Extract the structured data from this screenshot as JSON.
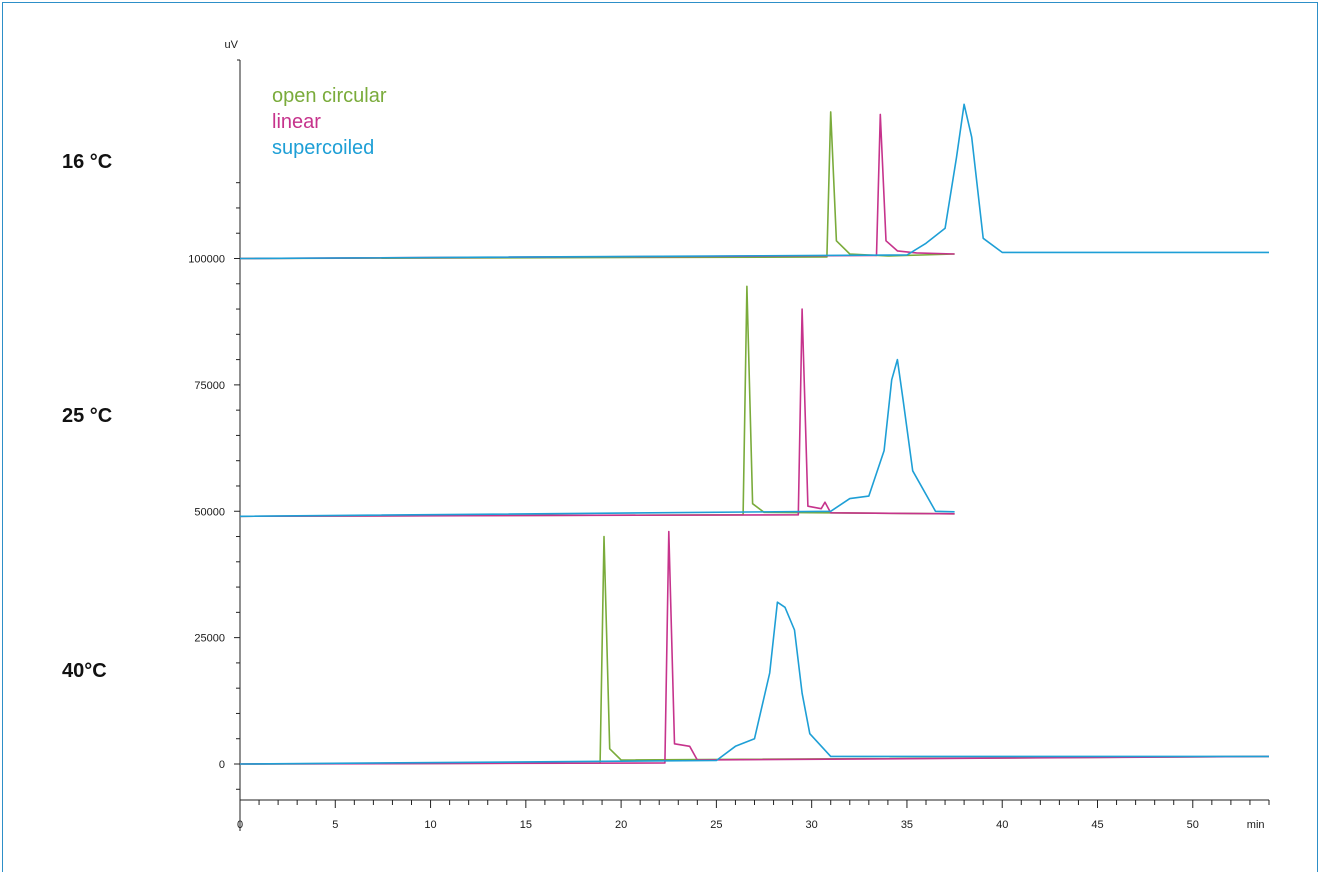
{
  "chart_data": {
    "type": "line",
    "title": "",
    "ylabel": "uV",
    "xlabel": "min",
    "xlim": [
      0,
      54
    ],
    "ylim": [
      -7500,
      118000
    ],
    "x_ticks": [
      0,
      5,
      10,
      15,
      20,
      25,
      30,
      35,
      40,
      45,
      50
    ],
    "y_ticks": [
      0,
      25000,
      50000,
      75000,
      100000
    ],
    "colors": {
      "open circular": "#7aab3b",
      "linear": "#c6338c",
      "supercoiled": "#1e9fd6"
    },
    "legend": {
      "placement": "top-left",
      "entries": [
        "open circular",
        "linear",
        "supercoiled"
      ]
    },
    "panels": [
      {
        "label": "16 °C",
        "baseline": 100000,
        "series": [
          {
            "name": "open circular",
            "points": [
              [
                0,
                100000
              ],
              [
                30.8,
                100300
              ],
              [
                31.0,
                129000
              ],
              [
                31.3,
                103500
              ],
              [
                32,
                100900
              ],
              [
                34,
                100500
              ],
              [
                37.5,
                100900
              ]
            ]
          },
          {
            "name": "linear",
            "points": [
              [
                0,
                100000
              ],
              [
                33.4,
                100600
              ],
              [
                33.6,
                128500
              ],
              [
                33.9,
                103500
              ],
              [
                34.5,
                101500
              ],
              [
                35.5,
                101100
              ],
              [
                37.5,
                100900
              ]
            ]
          },
          {
            "name": "supercoiled",
            "points": [
              [
                0,
                100000
              ],
              [
                35,
                100700
              ],
              [
                36,
                103000
              ],
              [
                37,
                106000
              ],
              [
                37.6,
                120000
              ],
              [
                38.0,
                130500
              ],
              [
                38.4,
                124000
              ],
              [
                39.0,
                104000
              ],
              [
                40,
                101200
              ],
              [
                54,
                101200
              ]
            ]
          }
        ]
      },
      {
        "label": "25 °C",
        "baseline": 49000,
        "series": [
          {
            "name": "open circular",
            "points": [
              [
                0,
                49000
              ],
              [
                26.4,
                49300
              ],
              [
                26.6,
                94500
              ],
              [
                26.9,
                51500
              ],
              [
                27.5,
                49800
              ],
              [
                37.5,
                49500
              ]
            ]
          },
          {
            "name": "linear",
            "points": [
              [
                0,
                49000
              ],
              [
                29.3,
                49300
              ],
              [
                29.5,
                90000
              ],
              [
                29.8,
                51000
              ],
              [
                30.5,
                50500
              ],
              [
                30.7,
                51800
              ],
              [
                31.0,
                49700
              ],
              [
                37.5,
                49500
              ]
            ]
          },
          {
            "name": "supercoiled",
            "points": [
              [
                0,
                49000
              ],
              [
                31,
                50000
              ],
              [
                32,
                52500
              ],
              [
                33,
                53000
              ],
              [
                33.8,
                62000
              ],
              [
                34.2,
                76000
              ],
              [
                34.5,
                80000
              ],
              [
                34.8,
                72000
              ],
              [
                35.3,
                58000
              ],
              [
                36.5,
                50000
              ],
              [
                37.5,
                49900
              ]
            ]
          }
        ]
      },
      {
        "label": "40°C",
        "baseline": 0,
        "series": [
          {
            "name": "open circular",
            "points": [
              [
                0,
                0
              ],
              [
                18.9,
                200
              ],
              [
                19.1,
                45000
              ],
              [
                19.4,
                3000
              ],
              [
                20,
                800
              ],
              [
                54,
                1500
              ]
            ]
          },
          {
            "name": "linear",
            "points": [
              [
                0,
                0
              ],
              [
                22.3,
                200
              ],
              [
                22.5,
                46000
              ],
              [
                22.8,
                4000
              ],
              [
                23.6,
                3500
              ],
              [
                24,
                800
              ],
              [
                54,
                1500
              ]
            ]
          },
          {
            "name": "supercoiled",
            "points": [
              [
                0,
                0
              ],
              [
                25,
                700
              ],
              [
                26,
                3500
              ],
              [
                27,
                5000
              ],
              [
                27.8,
                18000
              ],
              [
                28.2,
                32000
              ],
              [
                28.6,
                31000
              ],
              [
                29.1,
                26500
              ],
              [
                29.5,
                14000
              ],
              [
                29.9,
                6000
              ],
              [
                31,
                1500
              ],
              [
                54,
                1500
              ]
            ]
          }
        ]
      }
    ]
  }
}
